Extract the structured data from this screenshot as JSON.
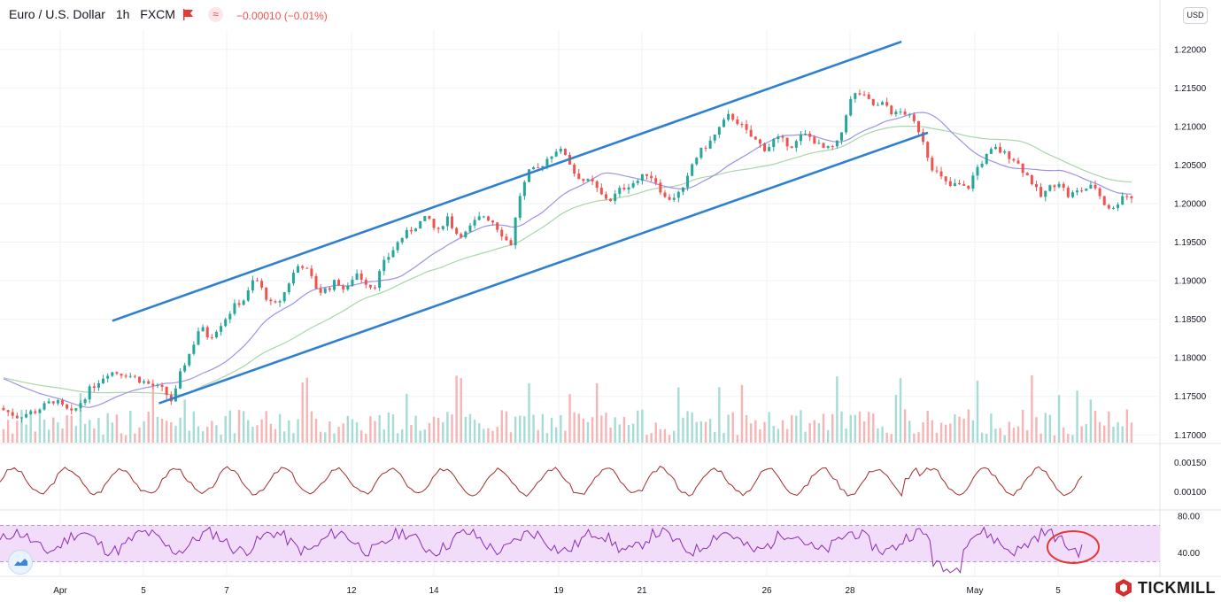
{
  "header": {
    "symbol": "Euro / U.S. Dollar",
    "interval": "1h",
    "exchange": "FXCM",
    "change": "−0.00010 (−0.01%)",
    "currency": "USD",
    "wave_icon": "wave-icon",
    "flag_icon": "flag-icon"
  },
  "colors": {
    "up": "#26a69a",
    "down": "#ef5350",
    "trendline": "#2f80d0",
    "ma_fast": "#9c93e6",
    "ma_slow": "#a9d6a9",
    "atr": "#a52a2a",
    "rsi": "#8e2bb4",
    "rsi_band": "#f1dcfa",
    "highlight_circle": "#e53935"
  },
  "brand": {
    "name": "TICKMILL",
    "logo_icon": "tickmill-logo-icon"
  },
  "chart_data": {
    "type": "candlestick",
    "title": "Euro / U.S. Dollar",
    "x_labels": [
      "Apr",
      "5",
      "7",
      "12",
      "14",
      "19",
      "21",
      "26",
      "28",
      "May",
      "5"
    ],
    "grid": true,
    "price_axis": {
      "ticks": [
        "1.22000",
        "1.21500",
        "1.21000",
        "1.20500",
        "1.20000",
        "1.19500",
        "1.19000",
        "1.18500",
        "1.18000",
        "1.17500",
        "1.17000"
      ],
      "ylim": [
        1.169,
        1.2225
      ]
    },
    "price_path": [
      [
        0,
        1.1735
      ],
      [
        2,
        1.1724
      ],
      [
        4,
        1.1731
      ],
      [
        6,
        1.1745
      ],
      [
        8,
        1.1727
      ],
      [
        10,
        1.176
      ],
      [
        12,
        1.1782
      ],
      [
        14,
        1.1779
      ],
      [
        16,
        1.1768
      ],
      [
        18,
        1.1758
      ],
      [
        19,
        1.1742
      ],
      [
        20,
        1.1785
      ],
      [
        21,
        1.1809
      ],
      [
        22,
        1.1841
      ],
      [
        23,
        1.1826
      ],
      [
        24,
        1.184
      ],
      [
        26,
        1.187
      ],
      [
        27,
        1.1877
      ],
      [
        28,
        1.1905
      ],
      [
        29,
        1.1884
      ],
      [
        30,
        1.1865
      ],
      [
        31,
        1.1878
      ],
      [
        32,
        1.1905
      ],
      [
        33,
        1.1924
      ],
      [
        34,
        1.1908
      ],
      [
        35,
        1.1885
      ],
      [
        36,
        1.189
      ],
      [
        37,
        1.19
      ],
      [
        38,
        1.1885
      ],
      [
        39,
        1.1912
      ],
      [
        40,
        1.19
      ],
      [
        41,
        1.189
      ],
      [
        42,
        1.192
      ],
      [
        43,
        1.1938
      ],
      [
        44,
        1.1955
      ],
      [
        45,
        1.1965
      ],
      [
        46,
        1.1975
      ],
      [
        47,
        1.1982
      ],
      [
        48,
        1.196
      ],
      [
        49,
        1.1985
      ],
      [
        50,
        1.1962
      ],
      [
        51,
        1.196
      ],
      [
        52,
        1.1975
      ],
      [
        53,
        1.1985
      ],
      [
        54,
        1.1978
      ],
      [
        55,
        1.1962
      ],
      [
        56,
        1.1945
      ],
      [
        57,
        1.201
      ],
      [
        58,
        1.204
      ],
      [
        59,
        1.2045
      ],
      [
        60,
        1.2058
      ],
      [
        61,
        1.207
      ],
      [
        62,
        1.2065
      ],
      [
        63,
        1.204
      ],
      [
        64,
        1.203
      ],
      [
        65,
        1.2026
      ],
      [
        66,
        1.201
      ],
      [
        67,
        1.2005
      ],
      [
        68,
        1.2018
      ],
      [
        69,
        1.2025
      ],
      [
        70,
        1.203
      ],
      [
        71,
        1.204
      ],
      [
        72,
        1.2028
      ],
      [
        73,
        1.2005
      ],
      [
        74,
        1.201
      ],
      [
        75,
        1.2018
      ],
      [
        76,
        1.2055
      ],
      [
        77,
        1.207
      ],
      [
        78,
        1.2082
      ],
      [
        79,
        1.21
      ],
      [
        80,
        1.2115
      ],
      [
        81,
        1.2105
      ],
      [
        82,
        1.209
      ],
      [
        83,
        1.208
      ],
      [
        84,
        1.207
      ],
      [
        85,
        1.2085
      ],
      [
        86,
        1.208
      ],
      [
        87,
        1.2075
      ],
      [
        88,
        1.209
      ],
      [
        89,
        1.2085
      ],
      [
        90,
        1.2072
      ],
      [
        91,
        1.207
      ],
      [
        92,
        1.208
      ],
      [
        93,
        1.213
      ],
      [
        94,
        1.2145
      ],
      [
        95,
        1.2135
      ],
      [
        96,
        1.2125
      ],
      [
        97,
        1.213
      ],
      [
        98,
        1.2115
      ],
      [
        99,
        1.212
      ],
      [
        100,
        1.2108
      ],
      [
        101,
        1.209
      ],
      [
        102,
        1.205
      ],
      [
        103,
        1.2035
      ],
      [
        104,
        1.2022
      ],
      [
        105,
        1.2025
      ],
      [
        106,
        1.2018
      ],
      [
        107,
        1.2045
      ],
      [
        108,
        1.206
      ],
      [
        109,
        1.2072
      ],
      [
        110,
        1.2065
      ],
      [
        111,
        1.206
      ],
      [
        112,
        1.2045
      ],
      [
        113,
        1.203
      ],
      [
        114,
        1.2008
      ],
      [
        115,
        1.202
      ],
      [
        116,
        1.203
      ],
      [
        117,
        1.201
      ],
      [
        118,
        1.2015
      ],
      [
        119,
        1.202
      ],
      [
        120,
        1.2022
      ],
      [
        121,
        1.2
      ],
      [
        122,
        1.1992
      ],
      [
        123,
        1.2012
      ],
      [
        124,
        1.2008
      ]
    ],
    "channel_upper": [
      [
        1.1848,
        1.221
      ]
    ],
    "channel_lower": [
      [
        1.1741,
        1.2092
      ]
    ],
    "volume_peak_label": "",
    "atr": {
      "ticks": [
        "0.00150",
        "0.00100"
      ],
      "ylim": [
        0.0007,
        0.0018
      ]
    },
    "rsi": {
      "ticks": [
        "80.00",
        "40.00"
      ],
      "ylim": [
        15,
        85
      ],
      "band": [
        30,
        70
      ],
      "highlight_circle": true
    }
  }
}
